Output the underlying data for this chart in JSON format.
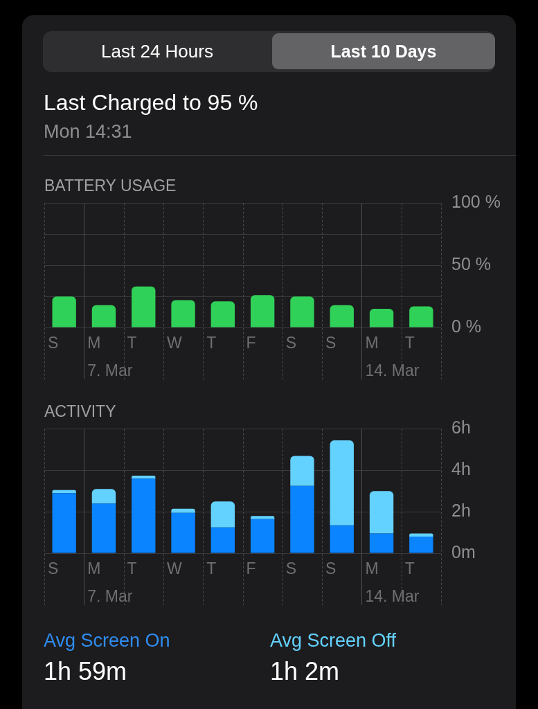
{
  "chart_data": [
    {
      "type": "other",
      "title": "Last Charged to 95 %",
      "subtitle": "Mon 14:31",
      "annotations": [
        "Last 24 Hours",
        "Last 10 Days"
      ]
    },
    {
      "type": "bar",
      "title": "BATTERY USAGE",
      "categories": [
        "S",
        "M\n7. Mar",
        "T",
        "W",
        "T",
        "F",
        "S",
        "S",
        "M\n14. Mar",
        "T"
      ],
      "values": [
        25,
        18,
        33,
        22,
        21,
        26,
        25,
        18,
        15,
        17
      ],
      "color": "#30d158",
      "ylim": [
        0,
        100
      ],
      "yticks": [
        {
          "value": 0,
          "label": "0 %"
        },
        {
          "value": 25,
          "label": null
        },
        {
          "value": 50,
          "label": "50 %"
        },
        {
          "value": 75,
          "label": null
        },
        {
          "value": 100,
          "label": "100 %"
        }
      ],
      "grid": true
    },
    {
      "type": "bar",
      "title": "ACTIVITY",
      "categories": [
        "S",
        "M\n7. Mar",
        "T",
        "W",
        "T",
        "F",
        "S",
        "S",
        "M\n14. Mar",
        "T"
      ],
      "stacked": true,
      "series": [
        {
          "color": "#0a84ff",
          "values": [
            2.9,
            2.4,
            3.6,
            1.95,
            1.25,
            1.65,
            3.25,
            1.35,
            0.95,
            0.8
          ]
        },
        {
          "color": "#64d2ff",
          "values": [
            0.15,
            0.7,
            0.15,
            0.2,
            1.25,
            0.15,
            1.45,
            4.1,
            2.05,
            0.15
          ]
        }
      ],
      "ylim": [
        0,
        6
      ],
      "yticks": [
        {
          "value": 0,
          "label": "0m"
        },
        {
          "value": 2,
          "label": "2h"
        },
        {
          "value": 4,
          "label": "4h"
        },
        {
          "value": 6,
          "label": "6h"
        }
      ],
      "grid": true
    },
    {
      "type": "other",
      "annotations": [
        "Avg Screen On",
        "1h 59m",
        "Avg Screen Off",
        "1h 2m"
      ]
    }
  ]
}
